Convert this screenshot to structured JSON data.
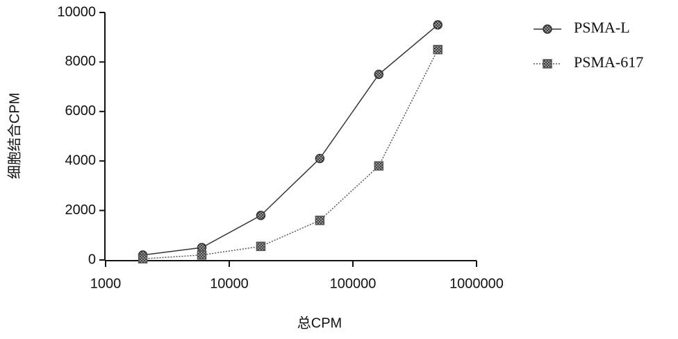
{
  "chart_data": {
    "type": "line",
    "x_label": "总CPM",
    "y_label": "细胞结合CPM",
    "xscale": "log",
    "xlim": [
      1000,
      1000000
    ],
    "xticks": [
      1000,
      10000,
      100000,
      1000000
    ],
    "ylim": [
      0,
      10000
    ],
    "yticks": [
      0,
      2000,
      4000,
      6000,
      8000,
      10000
    ],
    "x": [
      2000,
      6000,
      18000,
      54000,
      162000,
      486000
    ],
    "legend": "upper right",
    "series": [
      {
        "name": "PSMA-L",
        "color": "#333333",
        "marker": "circle",
        "linestyle": "solid",
        "values": [
          200,
          500,
          1800,
          4100,
          7500,
          9500
        ]
      },
      {
        "name": "PSMA-617",
        "color": "#555555",
        "marker": "square",
        "linestyle": "dotted",
        "values": [
          50,
          200,
          550,
          1600,
          3800,
          8500
        ]
      }
    ]
  }
}
